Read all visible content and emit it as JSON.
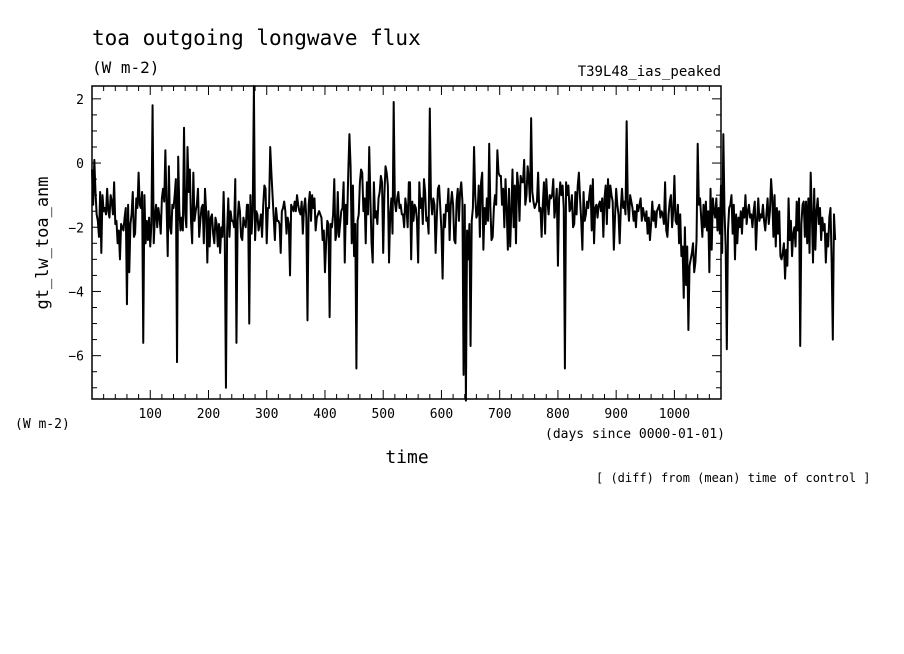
{
  "chart_data": {
    "type": "line",
    "title": "toa outgoing longwave flux",
    "units": "(W m-2)",
    "run_label": "T39L48_ias_peaked",
    "ylabel": "gt_lw_toa_anm",
    "y_units_label": "(W m-2)",
    "xlabel": "time",
    "x_units_label": "(days since 0000-01-01)",
    "footnote": "[ (diff) from (mean) time of control ]",
    "xlim": [
      0,
      1080
    ],
    "ylim": [
      -7.35,
      2.4
    ],
    "x_ticks": [
      100,
      200,
      300,
      400,
      500,
      600,
      700,
      800,
      900,
      1000
    ],
    "y_ticks": [
      -6,
      -4,
      -2,
      0,
      2
    ],
    "grid": false,
    "x_step_days": 2,
    "series": [
      {
        "values": [
          -0.2,
          -1.3,
          0.1,
          -0.9,
          -1.6,
          -1.8,
          -2.3,
          -0.9,
          -2.8,
          -1.0,
          -1.5,
          -1.4,
          -1.6,
          -0.8,
          -1.5,
          -1.7,
          -1.0,
          -1.2,
          -1.6,
          -0.6,
          -1.9,
          -1.8,
          -2.5,
          -2.1,
          -3.0,
          -1.9,
          -2.0,
          -2.1,
          -1.7,
          -1.4,
          -4.4,
          -1.3,
          -3.4,
          -1.9,
          -1.6,
          -0.9,
          -2.3,
          -2.2,
          -1.1,
          -1.4,
          -0.3,
          -1.3,
          -1.4,
          -0.9,
          -5.6,
          -1.0,
          -2.5,
          -1.8,
          -2.4,
          -1.7,
          -2.6,
          -1.9,
          1.8,
          -2.5,
          -1.7,
          -1.3,
          -2.0,
          -1.4,
          -1.7,
          -2.2,
          -1.1,
          -0.8,
          -1.2,
          0.4,
          -1.3,
          -2.9,
          -0.1,
          -2.0,
          -2.2,
          -1.3,
          -1.4,
          -1.0,
          -0.5,
          -6.2,
          0.2,
          -1.5,
          -2.1,
          -1.7,
          -2.1,
          1.1,
          -1.6,
          -2.0,
          0.5,
          -0.9,
          -0.2,
          -1.8,
          -2.5,
          -0.3,
          -1.8,
          -1.5,
          -1.3,
          -0.8,
          -2.3,
          -1.8,
          -1.4,
          -1.3,
          -2.5,
          -0.8,
          -1.5,
          -3.1,
          -1.5,
          -2.6,
          -1.7,
          -1.6,
          -2.2,
          -2.5,
          -1.7,
          -1.9,
          -2.6,
          -1.9,
          -2.8,
          -2.0,
          -2.3,
          -0.9,
          -2.4,
          -7.0,
          -2.1,
          -1.1,
          -2.3,
          -1.5,
          -1.8,
          -1.8,
          -2.0,
          -0.5,
          -5.6,
          -1.8,
          -1.2,
          -1.5,
          -2.3,
          -2.4,
          -1.7,
          -1.9,
          -2.0,
          -1.3,
          -1.3,
          -5.0,
          -1.0,
          -2.2,
          -1.5,
          2.4,
          -2.4,
          -1.5,
          -1.6,
          -2.1,
          -1.9,
          -1.6,
          -2.3,
          -1.3,
          -0.7,
          -0.8,
          -2.5,
          -1.4,
          -1.4,
          0.5,
          -0.3,
          -1.0,
          -1.7,
          -2.4,
          -1.4,
          -1.8,
          -1.8,
          -1.9,
          -2.8,
          -1.5,
          -1.4,
          -1.2,
          -1.5,
          -2.2,
          -1.7,
          -1.9,
          -3.5,
          -1.3,
          -1.4,
          -1.5,
          -1.2,
          -1.5,
          -1.0,
          -1.3,
          -1.5,
          -1.6,
          -1.2,
          -2.2,
          -1.4,
          -1.1,
          -1.7,
          -4.9,
          -1.3,
          -0.9,
          -1.8,
          -1.0,
          -1.4,
          -1.1,
          -2.1,
          -1.7,
          -1.6,
          -1.5,
          -1.6,
          -1.7,
          -2.4,
          -2.1,
          -3.4,
          -2.5,
          -1.8,
          -1.9,
          -4.8,
          -1.9,
          -2.0,
          -1.6,
          -0.5,
          -2.4,
          -2.2,
          -0.9,
          -2.3,
          -1.9,
          -1.5,
          -1.4,
          -0.6,
          -3.1,
          -1.3,
          -1.9,
          -0.3,
          0.9,
          -0.1,
          -2.5,
          -0.7,
          -2.9,
          -1.9,
          -6.4,
          -1.8,
          -1.6,
          -0.6,
          -0.2,
          -0.3,
          -1.5,
          -1.1,
          -2.5,
          -0.6,
          -1.6,
          0.5,
          -1.1,
          -2.5,
          -3.1,
          -0.6,
          -1.7,
          -1.5,
          -1.9,
          -1.1,
          -0.9,
          -0.4,
          -0.6,
          -2.8,
          -1.0,
          -0.1,
          -0.3,
          -0.7,
          -3.1,
          -1.6,
          -1.1,
          -2.2,
          1.9,
          -1.2,
          -1.5,
          -1.1,
          -0.9,
          -1.4,
          -1.3,
          -1.6,
          -1.6,
          -2.0,
          -1.1,
          -1.4,
          -2.0,
          -0.6,
          -0.6,
          -3.0,
          -1.2,
          -1.8,
          -1.3,
          -1.4,
          -1.8,
          -3.1,
          -0.6,
          -1.4,
          -1.1,
          -1.9,
          -0.5,
          -0.9,
          -1.8,
          -1.7,
          -2.2,
          1.7,
          -1.1,
          -1.6,
          -1.1,
          -1.3,
          -2.8,
          -1.7,
          -0.8,
          -0.7,
          -1.4,
          -2.1,
          -3.6,
          -1.6,
          -2.0,
          -1.3,
          -1.5,
          -0.8,
          -2.4,
          -1.3,
          -0.9,
          -1.3,
          -2.4,
          -2.5,
          -1.2,
          -0.8,
          -1.8,
          -0.9,
          -0.6,
          -1.2,
          -6.6,
          -1.3,
          -7.4,
          -2.1,
          -3.0,
          -1.9,
          -5.7,
          -1.8,
          -1.4,
          0.5,
          -1.0,
          -1.7,
          -1.6,
          -0.7,
          -2.3,
          -0.6,
          -0.3,
          -2.7,
          -1.4,
          -1.9,
          -1.1,
          -1.8,
          0.6,
          -1.4,
          -2.4,
          -2.3,
          -1.4,
          -1.0,
          -1.3,
          0.4,
          -0.3,
          -0.4,
          -0.4,
          -1.3,
          -0.8,
          -2.0,
          -0.5,
          -1.4,
          -2.7,
          -0.8,
          -2.6,
          -1.5,
          -0.2,
          -2.0,
          -0.7,
          -2.5,
          -0.3,
          -0.7,
          -1.8,
          -0.4,
          -0.6,
          -0.6,
          0.1,
          -1.3,
          -1.0,
          -0.1,
          -0.5,
          -1.2,
          1.4,
          -0.9,
          -1.2,
          -1.4,
          -1.3,
          -1.2,
          -0.3,
          -1.5,
          -1.4,
          -2.3,
          -1.3,
          -0.6,
          -2.2,
          -0.5,
          -1.2,
          -1.6,
          -1.0,
          -1.1,
          -1.0,
          -0.5,
          -1.7,
          -1.3,
          -0.8,
          -3.2,
          -1.1,
          -0.6,
          -1.0,
          -0.7,
          -1.4,
          -6.4,
          -0.6,
          -1.0,
          -0.7,
          -1.5,
          -1.4,
          -1.0,
          -2.0,
          -1.9,
          -0.9,
          -1.6,
          -0.7,
          -0.3,
          -1.1,
          -1.8,
          -2.7,
          -0.9,
          -1.8,
          -1.6,
          -1.2,
          -1.4,
          -1.0,
          -0.7,
          -2.1,
          -0.5,
          -2.5,
          -1.4,
          -1.3,
          -1.7,
          -1.3,
          -1.2,
          -1.5,
          -1.1,
          -2.3,
          -1.1,
          -0.7,
          -1.9,
          -0.5,
          -1.4,
          -0.7,
          -1.0,
          -1.2,
          -2.7,
          -1.7,
          -0.8,
          -1.3,
          -1.6,
          -2.5,
          -1.4,
          -0.8,
          -1.4,
          -1.2,
          -1.6,
          1.3,
          -1.3,
          -1.8,
          -1.0,
          -1.2,
          -1.4,
          -1.8,
          -1.5,
          -2.0,
          -1.3,
          -1.5,
          -1.3,
          -1.1,
          -1.8,
          -1.4,
          -1.6,
          -1.8,
          -1.5,
          -2.2,
          -1.7,
          -2.4,
          -1.9,
          -1.2,
          -1.8,
          -1.5,
          -2.0,
          -1.5,
          -1.4,
          -1.3,
          -1.7,
          -1.5,
          -1.6,
          -1.9,
          -0.6,
          -2.1,
          -2.3,
          -1.6,
          -1.2,
          -1.0,
          -2.0,
          -1.5,
          -0.4,
          -1.8,
          -1.9,
          -1.3,
          -2.5,
          -1.6,
          -2.9,
          -2.6,
          -4.2,
          -2.0,
          -3.8,
          -2.6,
          -5.2,
          -3.2,
          -3.0,
          -2.8,
          -2.5,
          -3.4,
          -3.1,
          -2.4,
          0.6,
          -1.3,
          -1.1,
          -1.7,
          -2.3,
          -1.3,
          -2.0,
          -1.2,
          -2.1,
          -1.5,
          -3.4,
          -0.8,
          -2.7,
          -1.1,
          -1.5,
          -1.7,
          -1.1,
          -2.1,
          -1.4,
          -2.2,
          -0.7,
          -2.8,
          0.9,
          -1.5,
          -2.6,
          -5.8,
          -2.1,
          -1.4,
          -1.3,
          -1.0,
          -2.2,
          -1.3,
          -3.0,
          -1.6,
          -2.5,
          -1.7,
          -2.0,
          -1.5,
          -2.2,
          -1.4,
          -1.7,
          -1.0,
          -1.9,
          -1.5,
          -1.3,
          -1.7,
          -1.6,
          -2.0,
          -1.5,
          -1.2,
          -2.7,
          -1.8,
          -1.1,
          -1.8,
          -1.6,
          -1.7,
          -1.3,
          -1.8,
          -2.1,
          -1.6,
          -1.1,
          -1.9,
          -1.5,
          -0.5,
          -1.1,
          -2.3,
          -1.0,
          -2.6,
          -1.4,
          -2.2,
          -1.5,
          -2.9,
          -3.0,
          -2.8,
          -2.5,
          -3.6,
          -2.7,
          -3.2,
          -1.1,
          -2.4,
          -1.8,
          -2.9,
          -2.2,
          -2.0,
          -2.6,
          -1.2,
          -2.1,
          -1.1,
          -5.7,
          -1.9,
          -1.3,
          -1.2,
          -2.3,
          -1.2,
          -2.5,
          -1.1,
          -2.8,
          -0.3,
          -1.6,
          -3.1,
          -0.8,
          -2.7,
          -1.5,
          -1.1,
          -1.9,
          -1.4,
          -2.4,
          -1.7,
          -2.1,
          -1.9,
          -3.1,
          -2.2,
          -2.6,
          -1.7,
          -1.4,
          -3.1,
          -5.5,
          -1.6,
          -2.4
        ]
      }
    ]
  }
}
